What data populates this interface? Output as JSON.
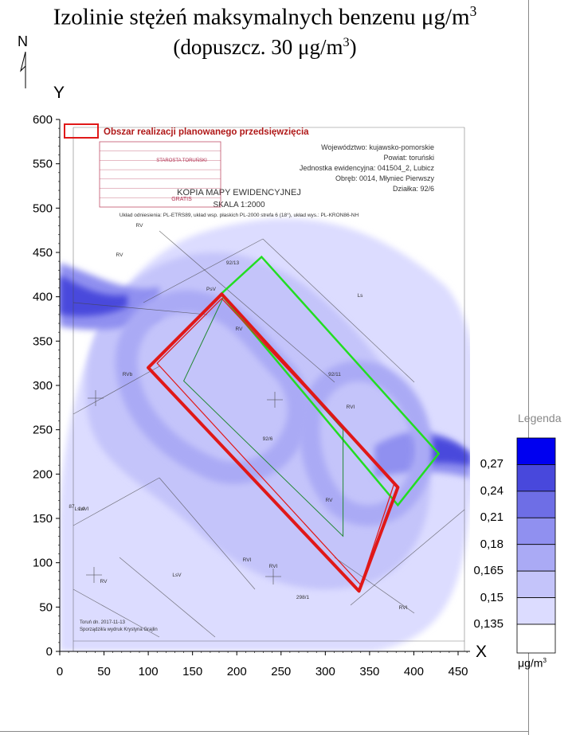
{
  "title": {
    "line1_pre": "Izolinie stężeń maksymalnych benzenu μg/m",
    "line1_sup": "3",
    "line2_pre": "(dopuszcz. 30 μg/m",
    "line2_sup": "3",
    "line2_post": ")"
  },
  "north_label": "N",
  "chart_data": {
    "type": "heatmap",
    "xlabel": "X",
    "ylabel": "Y",
    "xlim": [
      0,
      450
    ],
    "ylim": [
      0,
      600
    ],
    "x_ticks": [
      0,
      50,
      100,
      150,
      200,
      250,
      300,
      350,
      400,
      450
    ],
    "y_ticks": [
      0,
      50,
      100,
      150,
      200,
      250,
      300,
      350,
      400,
      450,
      500,
      550,
      600
    ],
    "legend_levels": [
      "0,135",
      "0,15",
      "0,165",
      "0,18",
      "0,21",
      "0,24",
      "0,27"
    ],
    "legend_colors": [
      "#dcdcff",
      "#c4c4fa",
      "#aaaaf5",
      "#9090f0",
      "#6e6ee6",
      "#4848dc",
      "#0000f0"
    ],
    "legend_title": "Legenda",
    "unit_pre": "μg/m",
    "unit_sup": "3",
    "project_area": {
      "label": "Obszar realizacji planowanego przedsięwzięcia",
      "color": "#e01818",
      "polygon": [
        [
          100,
          320
        ],
        [
          183,
          403
        ],
        [
          382,
          185
        ],
        [
          338,
          68
        ]
      ]
    },
    "green_outline": {
      "color": "#22dd22",
      "polygon": [
        [
          182,
          403
        ],
        [
          228,
          445
        ],
        [
          428,
          223
        ],
        [
          382,
          165
        ]
      ]
    }
  },
  "map_text": {
    "voivodeship": "Województwo: kujawsko-pomorskie",
    "county": "Powiat: toruński",
    "unit": "Jednostka ewidencyjna: 041504_2, Lubicz",
    "precinct": "Obręb: 0014, Młyniec Pierwszy",
    "parcel": "Działka: 92/6",
    "copy_title": "KOPIA MAPY EWIDENCYJNEJ",
    "scale": "SKALA 1:2000",
    "reference": "Układ odniesienia: PL-ETRS89, układ wsp. płaskich PL-2000 strefa 6 (18°), układ wys.: PL-KRON86-NH",
    "stamp_office": "STAROSTA TORUŃSKI",
    "stamp_paid": "GRATIS",
    "footer1": "Toruń dn. 2017-11-13",
    "footer2": "Sporządził/a wydruk Krystyna Grajlin",
    "parcel_labels": [
      "92/13",
      "92/11",
      "92/6",
      "298/1",
      "RV",
      "RV",
      "RV",
      "RVI",
      "RVI",
      "RVI",
      "RVb",
      "LsVI",
      "LsV",
      "PsV",
      "Ls",
      "RVI",
      "RV",
      "LsVI",
      "RV",
      "87"
    ]
  }
}
